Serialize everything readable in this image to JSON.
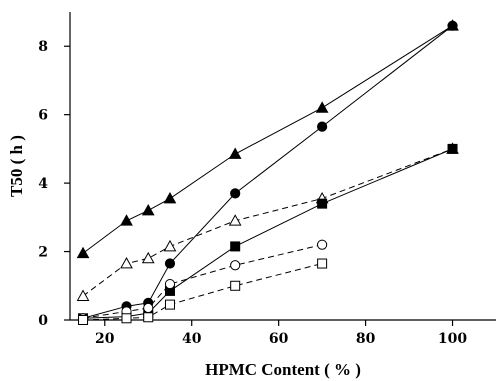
{
  "chart_data": {
    "type": "line",
    "title": "",
    "xlabel": "HPMC Content ( % )",
    "ylabel": "T50 ( h )",
    "xlim": [
      12,
      110
    ],
    "ylim": [
      0,
      9
    ],
    "xticks": [
      20,
      40,
      60,
      80,
      100
    ],
    "yticks": [
      0,
      2,
      4,
      6,
      8
    ],
    "grid": false,
    "legend": "none",
    "series": [
      {
        "marker": "filled-triangle",
        "line_style": "solid",
        "x": [
          15,
          25,
          30,
          35,
          50,
          70,
          100
        ],
        "y": [
          1.95,
          2.9,
          3.2,
          3.55,
          4.85,
          6.2,
          8.6
        ]
      },
      {
        "marker": "filled-circle",
        "line_style": "solid",
        "x": [
          15,
          25,
          30,
          35,
          50,
          70,
          100
        ],
        "y": [
          0.05,
          0.4,
          0.5,
          1.65,
          3.7,
          5.65,
          8.6
        ]
      },
      {
        "marker": "open-triangle",
        "line_style": "dashed",
        "x": [
          15,
          25,
          30,
          35,
          50,
          70,
          100
        ],
        "y": [
          0.7,
          1.65,
          1.8,
          2.15,
          2.9,
          3.55,
          5.0
        ]
      },
      {
        "marker": "filled-square",
        "line_style": "solid",
        "x": [
          15,
          25,
          30,
          35,
          50,
          70,
          100
        ],
        "y": [
          0.05,
          0.1,
          0.2,
          0.85,
          2.15,
          3.4,
          5.0
        ]
      },
      {
        "marker": "open-circle",
        "line_style": "dashed",
        "x": [
          15,
          25,
          30,
          35,
          50,
          70
        ],
        "y": [
          0.05,
          0.25,
          0.35,
          1.05,
          1.6,
          2.2
        ]
      },
      {
        "marker": "open-square",
        "line_style": "dashed",
        "x": [
          15,
          25,
          30,
          35,
          50,
          70
        ],
        "y": [
          0.0,
          0.05,
          0.08,
          0.45,
          1.0,
          1.65
        ]
      }
    ]
  }
}
